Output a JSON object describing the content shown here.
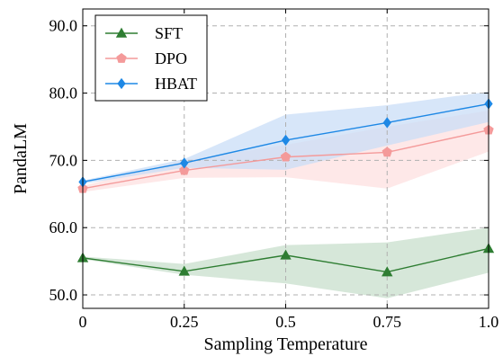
{
  "chart_data": {
    "type": "line",
    "xlabel": "Sampling Temperature",
    "ylabel": "PandaLM",
    "x": [
      0,
      0.25,
      0.5,
      0.75,
      1.0
    ],
    "x_tick_labels": [
      "0",
      "0.25",
      "0.5",
      "0.75",
      "1.0"
    ],
    "y_ticks": [
      50,
      60,
      70,
      80,
      90
    ],
    "y_tick_labels": [
      "50.0",
      "60.0",
      "70.0",
      "80.0",
      "90.0"
    ],
    "xlim": [
      0,
      1.0
    ],
    "ylim": [
      48,
      92.5
    ],
    "grid": true,
    "grid_style": "dashed",
    "legend_position": "top-left",
    "series": [
      {
        "name": "SFT",
        "marker": "triangle",
        "color": "#2e7d32",
        "band_color": "#c8dfcc",
        "values": [
          55.5,
          53.5,
          55.9,
          53.4,
          56.9
        ],
        "lower": [
          55.3,
          53.0,
          51.7,
          49.5,
          53.3
        ],
        "upper": [
          55.7,
          54.6,
          57.4,
          57.8,
          60.0
        ]
      },
      {
        "name": "DPO",
        "marker": "pentagon",
        "color": "#f49a9a",
        "band_color": "#fde0e0",
        "values": [
          65.8,
          68.5,
          70.5,
          71.2,
          74.5
        ],
        "lower": [
          65.3,
          67.4,
          67.5,
          65.8,
          71.3
        ],
        "upper": [
          66.2,
          70.0,
          72.3,
          75.0,
          77.4
        ]
      },
      {
        "name": "HBAT",
        "marker": "diamond",
        "color": "#1e88e5",
        "band_color": "#c9ddf7",
        "values": [
          66.8,
          69.6,
          73.0,
          75.6,
          78.4
        ],
        "lower": [
          66.5,
          68.9,
          68.6,
          72.2,
          75.7
        ],
        "upper": [
          67.0,
          70.2,
          76.8,
          78.2,
          80.2
        ]
      }
    ]
  }
}
